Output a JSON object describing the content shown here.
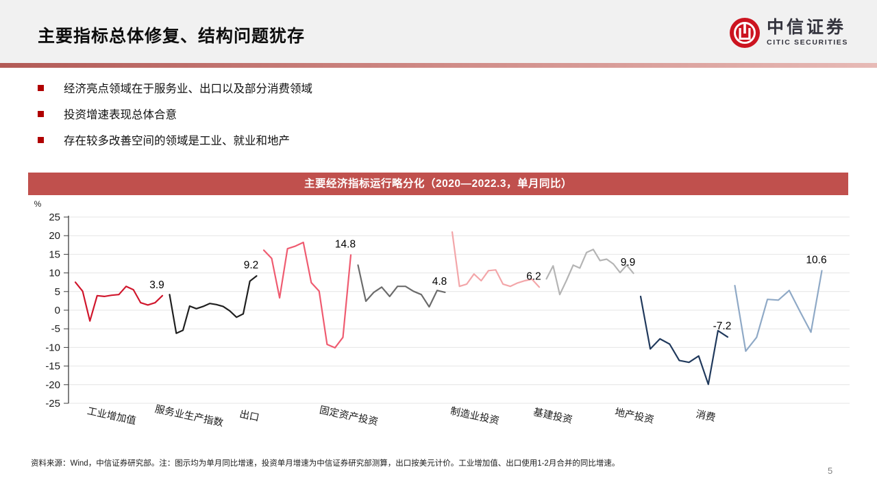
{
  "header": {
    "title": "主要指标总体修复、结构问题犹存",
    "logo": {
      "name_cn": "中信证券",
      "name_en": "CITIC SECURITIES"
    }
  },
  "bullets": [
    {
      "text": "经济亮点领域在于服务业、出口以及部分消费领域"
    },
    {
      "text": "投资增速表现总体合意"
    },
    {
      "text": "存在较多改善空间的领域是工业、就业和地产"
    }
  ],
  "banner": {
    "title": "主要经济指标运行略分化（2020—2022.3，单月同比）"
  },
  "chart_data": {
    "type": "line",
    "title": "主要经济指标运行略分化（2020—2022.3，单月同比）",
    "ylabel": "%",
    "ylim": [
      -25,
      25
    ],
    "ytick_step": 5,
    "grid": true,
    "legend": "none",
    "categories": [
      "工业增加值",
      "服务业生产指数",
      "出口",
      "固定资产投资",
      "制造业投资",
      "基建投资",
      "地产投资",
      "消费"
    ],
    "series": [
      {
        "name": "工业增加值",
        "color": "#d0162c",
        "end_label": "3.9",
        "values": [
          7.5,
          5.1,
          -2.9,
          3.9,
          3.7,
          4.0,
          4.2,
          6.4,
          5.5,
          2.0,
          1.4,
          2.0,
          3.9
        ]
      },
      {
        "name": "服务业生产指数",
        "color": "#1f1f1f",
        "end_label": "9.2",
        "values": [
          4.2,
          -6.2,
          -5.4,
          1.1,
          0.4,
          1.0,
          1.8,
          1.5,
          1.0,
          -0.2,
          -1.9,
          -1.0,
          7.8,
          9.2
        ]
      },
      {
        "name": "出口",
        "color": "#ef5b70",
        "end_label": "14.8",
        "values": [
          16.1,
          13.9,
          3.3,
          16.5,
          17.2,
          18.2,
          7.4,
          5.1,
          -9.2,
          -10.1,
          -7.3,
          14.8
        ]
      },
      {
        "name": "固定资产投资",
        "color": "#6b6b6b",
        "end_label": "4.8",
        "values": [
          12.1,
          2.4,
          4.8,
          6.2,
          3.7,
          6.4,
          6.4,
          5.1,
          4.2,
          0.9,
          5.3,
          4.8
        ]
      },
      {
        "name": "制造业投资",
        "color": "#f3a6a9",
        "end_label": "6.2",
        "values": [
          21.0,
          6.4,
          7.0,
          9.7,
          7.9,
          10.6,
          10.8,
          7.0,
          6.4,
          7.3,
          7.9,
          8.3,
          6.2
        ]
      },
      {
        "name": "基建投资",
        "color": "#b4b4b4",
        "end_label": "9.9",
        "values": [
          8.4,
          11.9,
          4.2,
          8.0,
          12.1,
          11.3,
          15.5,
          16.3,
          13.3,
          13.7,
          12.4,
          10.1,
          12.1,
          9.9
        ]
      },
      {
        "name": "地产投资",
        "color": "#20395c",
        "end_label": "-7.2",
        "values": [
          3.7,
          -10.4,
          -7.7,
          -9.1,
          -13.5,
          -14.0,
          -12.3,
          -19.9,
          -5.5,
          -7.2
        ]
      },
      {
        "name": "消费",
        "color": "#8fa9c6",
        "end_label": "10.6",
        "values": [
          6.6,
          -11.0,
          -7.3,
          2.9,
          2.7,
          5.3,
          -0.4,
          -5.9,
          10.6
        ]
      }
    ]
  },
  "footer": {
    "source_note": "资料来源：Wind，中信证券研究部。注：图示均为单月同比增速，投资单月增速为中信证券研究部测算，出口按美元计价。工业增加值、出口使用1-2月合并的同比增速。",
    "page_number": "5"
  },
  "colors": {
    "banner_bg": "#c0504d",
    "bullet": "#b00000",
    "header_bg": "#f1f1f1",
    "logo_red": "#cc1420"
  }
}
